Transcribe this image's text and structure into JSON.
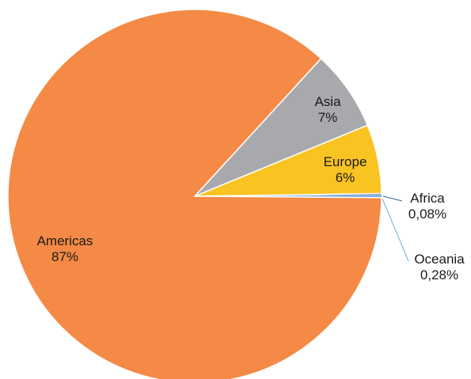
{
  "chart_data": {
    "type": "pie",
    "slices": [
      {
        "name": "Americas",
        "value": 87,
        "value_label": "87%",
        "color": "#f48a45"
      },
      {
        "name": "Asia",
        "value": 7,
        "value_label": "7%",
        "color": "#a8a9ac"
      },
      {
        "name": "Europe",
        "value": 6,
        "value_label": "6%",
        "color": "#f9c321"
      },
      {
        "name": "Africa",
        "value": 0.08,
        "value_label": "0,08%",
        "color": "#2b63b0"
      },
      {
        "name": "Oceania",
        "value": 0.28,
        "value_label": "0,28%",
        "color": "#6fa8dc"
      }
    ]
  }
}
